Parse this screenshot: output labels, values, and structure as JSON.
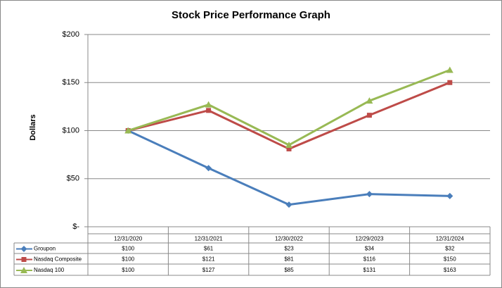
{
  "chart_data": {
    "type": "line",
    "title": "Stock Price Performance Graph",
    "y_label": "Dollars",
    "categories": [
      "12/31/2020",
      "12/31/2021",
      "12/30/2022",
      "12/29/2023",
      "12/31/2024"
    ],
    "series": [
      {
        "name": "Groupon",
        "color": "#4a7ebb",
        "marker": "diamond",
        "values": [
          100,
          61,
          23,
          34,
          32
        ],
        "value_labels": [
          "$100",
          "$61",
          "$23",
          "$34",
          "$32"
        ]
      },
      {
        "name": "Nasdaq Composite",
        "color": "#be4b48",
        "marker": "square",
        "values": [
          100,
          121,
          81,
          116,
          150
        ],
        "value_labels": [
          "$100",
          "$121",
          "$81",
          "$116",
          "$150"
        ]
      },
      {
        "name": "Nasdaq 100",
        "color": "#98b954",
        "marker": "triangle",
        "values": [
          100,
          127,
          85,
          131,
          163
        ],
        "value_labels": [
          "$100",
          "$127",
          "$85",
          "$131",
          "$163"
        ]
      }
    ],
    "ylim": [
      0,
      200
    ],
    "yticks": [
      {
        "value": 0,
        "label": "$-"
      },
      {
        "value": 50,
        "label": "$50"
      },
      {
        "value": 100,
        "label": "$100"
      },
      {
        "value": 150,
        "label": "$150"
      },
      {
        "value": 200,
        "label": "$200"
      }
    ],
    "grid": true
  }
}
